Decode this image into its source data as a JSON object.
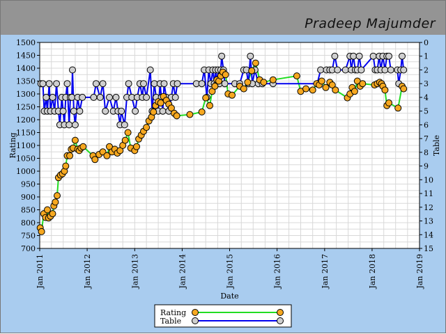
{
  "header": {
    "title": "Pradeep Majumder"
  },
  "chart_data": {
    "type": "line",
    "xlabel": "Date",
    "ylabel": "Rating",
    "y2label": "Table",
    "x_ticks": [
      "Jan 2011",
      "Jan 2012",
      "Jan 2013",
      "Jan 2014",
      "Jan 2015",
      "Jan 2016",
      "Jan 2017",
      "Jan 2018",
      "Jan 2019"
    ],
    "xlim": [
      "2011-01-01",
      "2019-01-01"
    ],
    "ylim": [
      700,
      1500
    ],
    "y_ticks": [
      700,
      750,
      800,
      850,
      900,
      950,
      1000,
      1050,
      1100,
      1150,
      1200,
      1250,
      1300,
      1350,
      1400,
      1450,
      1500
    ],
    "y2lim": [
      15,
      0
    ],
    "y2_ticks": [
      0,
      1,
      2,
      3,
      4,
      5,
      6,
      7,
      8,
      9,
      10,
      11,
      12,
      13,
      14,
      15
    ],
    "grid": true,
    "legend_position": "bottom-center",
    "series": [
      {
        "name": "Rating",
        "axis": "left",
        "line_color": "#22dd22",
        "marker_color": "#f6a820",
        "points": [
          [
            "2011-01-05",
            780
          ],
          [
            "2011-01-15",
            765
          ],
          [
            "2011-02-01",
            835
          ],
          [
            "2011-02-15",
            820
          ],
          [
            "2011-03-01",
            850
          ],
          [
            "2011-03-10",
            818
          ],
          [
            "2011-03-25",
            825
          ],
          [
            "2011-04-10",
            835
          ],
          [
            "2011-04-20",
            865
          ],
          [
            "2011-05-01",
            880
          ],
          [
            "2011-05-15",
            905
          ],
          [
            "2011-05-25",
            975
          ],
          [
            "2011-06-10",
            985
          ],
          [
            "2011-06-25",
            990
          ],
          [
            "2011-07-10",
            1000
          ],
          [
            "2011-07-20",
            1020
          ],
          [
            "2011-08-01",
            1060
          ],
          [
            "2011-08-20",
            1060
          ],
          [
            "2011-09-01",
            1085
          ],
          [
            "2011-09-15",
            1090
          ],
          [
            "2011-10-01",
            1120
          ],
          [
            "2011-10-20",
            1085
          ],
          [
            "2011-11-01",
            1080
          ],
          [
            "2011-11-15",
            1090
          ],
          [
            "2011-12-01",
            1095
          ],
          [
            "2012-02-15",
            1060
          ],
          [
            "2012-03-01",
            1045
          ],
          [
            "2012-04-01",
            1065
          ],
          [
            "2012-05-01",
            1075
          ],
          [
            "2012-06-01",
            1060
          ],
          [
            "2012-06-20",
            1095
          ],
          [
            "2012-07-10",
            1075
          ],
          [
            "2012-08-01",
            1085
          ],
          [
            "2012-08-20",
            1070
          ],
          [
            "2012-09-10",
            1080
          ],
          [
            "2012-10-01",
            1100
          ],
          [
            "2012-10-20",
            1120
          ],
          [
            "2012-11-10",
            1150
          ],
          [
            "2012-12-01",
            1090
          ],
          [
            "2013-01-01",
            1080
          ],
          [
            "2013-01-15",
            1095
          ],
          [
            "2013-02-01",
            1125
          ],
          [
            "2013-02-20",
            1140
          ],
          [
            "2013-03-10",
            1155
          ],
          [
            "2013-04-01",
            1170
          ],
          [
            "2013-04-20",
            1195
          ],
          [
            "2013-05-10",
            1210
          ],
          [
            "2013-05-25",
            1230
          ],
          [
            "2013-06-10",
            1255
          ],
          [
            "2013-07-01",
            1270
          ],
          [
            "2013-07-20",
            1265
          ],
          [
            "2013-08-10",
            1290
          ],
          [
            "2013-09-01",
            1275
          ],
          [
            "2013-09-20",
            1260
          ],
          [
            "2013-10-10",
            1245
          ],
          [
            "2013-11-01",
            1225
          ],
          [
            "2013-11-20",
            1215
          ],
          [
            "2014-03-01",
            1220
          ],
          [
            "2014-06-01",
            1230
          ],
          [
            "2014-07-01",
            1285
          ],
          [
            "2014-08-01",
            1255
          ],
          [
            "2014-08-20",
            1310
          ],
          [
            "2014-09-10",
            1330
          ],
          [
            "2014-09-25",
            1355
          ],
          [
            "2014-10-10",
            1350
          ],
          [
            "2014-10-25",
            1370
          ],
          [
            "2014-11-10",
            1385
          ],
          [
            "2014-12-01",
            1375
          ],
          [
            "2014-12-20",
            1300
          ],
          [
            "2015-01-20",
            1295
          ],
          [
            "2015-03-20",
            1330
          ],
          [
            "2015-04-20",
            1320
          ],
          [
            "2015-05-20",
            1345
          ],
          [
            "2015-06-20",
            1390
          ],
          [
            "2015-07-20",
            1420
          ],
          [
            "2015-08-20",
            1355
          ],
          [
            "2015-09-20",
            1345
          ],
          [
            "2015-12-01",
            1355
          ],
          [
            "2016-06-01",
            1370
          ],
          [
            "2016-07-01",
            1310
          ],
          [
            "2016-08-10",
            1320
          ],
          [
            "2016-10-01",
            1315
          ],
          [
            "2016-11-01",
            1340
          ],
          [
            "2016-11-20",
            1335
          ],
          [
            "2016-12-10",
            1350
          ],
          [
            "2017-01-10",
            1325
          ],
          [
            "2017-02-10",
            1345
          ],
          [
            "2017-03-01",
            1335
          ],
          [
            "2017-03-25",
            1315
          ],
          [
            "2017-06-25",
            1285
          ],
          [
            "2017-07-15",
            1300
          ],
          [
            "2017-08-01",
            1325
          ],
          [
            "2017-08-20",
            1310
          ],
          [
            "2017-09-10",
            1350
          ],
          [
            "2017-10-01",
            1330
          ],
          [
            "2017-10-20",
            1340
          ],
          [
            "2018-01-20",
            1335
          ],
          [
            "2018-02-10",
            1340
          ],
          [
            "2018-03-01",
            1345
          ],
          [
            "2018-03-15",
            1340
          ],
          [
            "2018-03-25",
            1330
          ],
          [
            "2018-04-10",
            1315
          ],
          [
            "2018-04-25",
            1255
          ],
          [
            "2018-05-10",
            1265
          ],
          [
            "2018-07-20",
            1245
          ],
          [
            "2018-08-20",
            1330
          ],
          [
            "2018-09-01",
            1320
          ]
        ]
      },
      {
        "name": "Table",
        "axis": "right",
        "line_color": "#0000ee",
        "marker_color": "#cfcfcf",
        "points": [
          [
            "2011-01-10",
            3
          ],
          [
            "2011-01-25",
            3
          ],
          [
            "2011-02-05",
            5
          ],
          [
            "2011-02-20",
            4
          ],
          [
            "2011-03-01",
            5
          ],
          [
            "2011-03-15",
            3
          ],
          [
            "2011-03-25",
            5
          ],
          [
            "2011-04-10",
            4
          ],
          [
            "2011-04-25",
            5
          ],
          [
            "2011-05-10",
            3
          ],
          [
            "2011-05-25",
            5
          ],
          [
            "2011-06-05",
            6
          ],
          [
            "2011-06-20",
            4
          ],
          [
            "2011-06-30",
            5
          ],
          [
            "2011-07-10",
            6
          ],
          [
            "2011-07-20",
            4
          ],
          [
            "2011-08-01",
            3
          ],
          [
            "2011-08-15",
            6
          ],
          [
            "2011-08-25",
            4
          ],
          [
            "2011-09-05",
            4
          ],
          [
            "2011-09-10",
            2
          ],
          [
            "2011-09-20",
            5
          ],
          [
            "2011-10-01",
            6
          ],
          [
            "2011-10-20",
            4
          ],
          [
            "2011-11-05",
            5
          ],
          [
            "2011-11-25",
            4
          ],
          [
            "2012-02-20",
            4
          ],
          [
            "2012-03-10",
            3
          ],
          [
            "2012-04-10",
            4
          ],
          [
            "2012-05-01",
            3
          ],
          [
            "2012-05-20",
            5
          ],
          [
            "2012-06-20",
            4
          ],
          [
            "2012-07-20",
            5
          ],
          [
            "2012-08-10",
            4
          ],
          [
            "2012-08-25",
            5
          ],
          [
            "2012-09-10",
            6
          ],
          [
            "2012-09-20",
            5
          ],
          [
            "2012-10-15",
            6
          ],
          [
            "2012-11-01",
            4
          ],
          [
            "2012-11-15",
            3
          ],
          [
            "2012-12-10",
            4
          ],
          [
            "2013-01-05",
            5
          ],
          [
            "2013-01-20",
            4
          ],
          [
            "2013-02-10",
            3
          ],
          [
            "2013-03-01",
            4
          ],
          [
            "2013-03-10",
            3
          ],
          [
            "2013-04-01",
            4
          ],
          [
            "2013-05-01",
            2
          ],
          [
            "2013-05-15",
            5
          ],
          [
            "2013-06-01",
            3
          ],
          [
            "2013-06-15",
            4
          ],
          [
            "2013-07-01",
            5
          ],
          [
            "2013-07-15",
            3
          ],
          [
            "2013-07-25",
            4
          ],
          [
            "2013-08-05",
            5
          ],
          [
            "2013-08-15",
            3
          ],
          [
            "2013-09-01",
            4
          ],
          [
            "2013-09-20",
            5
          ],
          [
            "2013-10-10",
            4
          ],
          [
            "2013-10-25",
            3
          ],
          [
            "2013-11-10",
            4
          ],
          [
            "2013-11-25",
            3
          ],
          [
            "2014-04-20",
            3
          ],
          [
            "2014-06-01",
            3
          ],
          [
            "2014-06-20",
            2
          ],
          [
            "2014-07-10",
            4
          ],
          [
            "2014-07-25",
            2
          ],
          [
            "2014-08-10",
            3
          ],
          [
            "2014-08-25",
            2
          ],
          [
            "2014-09-05",
            3
          ],
          [
            "2014-09-15",
            2
          ],
          [
            "2014-09-25",
            3
          ],
          [
            "2014-10-05",
            2
          ],
          [
            "2014-10-15",
            3
          ],
          [
            "2014-10-25",
            2
          ],
          [
            "2014-11-01",
            1
          ],
          [
            "2014-11-15",
            2
          ],
          [
            "2014-11-25",
            3
          ],
          [
            "2015-02-10",
            3
          ],
          [
            "2015-03-20",
            3
          ],
          [
            "2015-04-20",
            2
          ],
          [
            "2015-05-10",
            2
          ],
          [
            "2015-05-25",
            3
          ],
          [
            "2015-06-10",
            1
          ],
          [
            "2015-06-25",
            3
          ],
          [
            "2015-07-15",
            2
          ],
          [
            "2015-08-10",
            3
          ],
          [
            "2015-09-10",
            3
          ],
          [
            "2015-12-01",
            3
          ],
          [
            "2016-11-05",
            3
          ],
          [
            "2016-12-01",
            2
          ],
          [
            "2017-01-15",
            2
          ],
          [
            "2017-02-10",
            2
          ],
          [
            "2017-03-01",
            2
          ],
          [
            "2017-03-20",
            1
          ],
          [
            "2017-04-10",
            2
          ],
          [
            "2017-06-10",
            2
          ],
          [
            "2017-07-15",
            1
          ],
          [
            "2017-07-25",
            2
          ],
          [
            "2017-08-10",
            1
          ],
          [
            "2017-08-25",
            2
          ],
          [
            "2017-09-10",
            2
          ],
          [
            "2017-09-25",
            1
          ],
          [
            "2017-10-10",
            2
          ],
          [
            "2018-01-10",
            1
          ],
          [
            "2018-01-25",
            2
          ],
          [
            "2018-02-10",
            2
          ],
          [
            "2018-02-25",
            1
          ],
          [
            "2018-03-10",
            2
          ],
          [
            "2018-03-25",
            1
          ],
          [
            "2018-04-10",
            2
          ],
          [
            "2018-04-25",
            1
          ],
          [
            "2018-05-10",
            1
          ],
          [
            "2018-05-25",
            2
          ],
          [
            "2018-07-15",
            2
          ],
          [
            "2018-07-25",
            3
          ],
          [
            "2018-08-10",
            2
          ],
          [
            "2018-08-20",
            1
          ],
          [
            "2018-09-01",
            2
          ]
        ]
      }
    ]
  }
}
